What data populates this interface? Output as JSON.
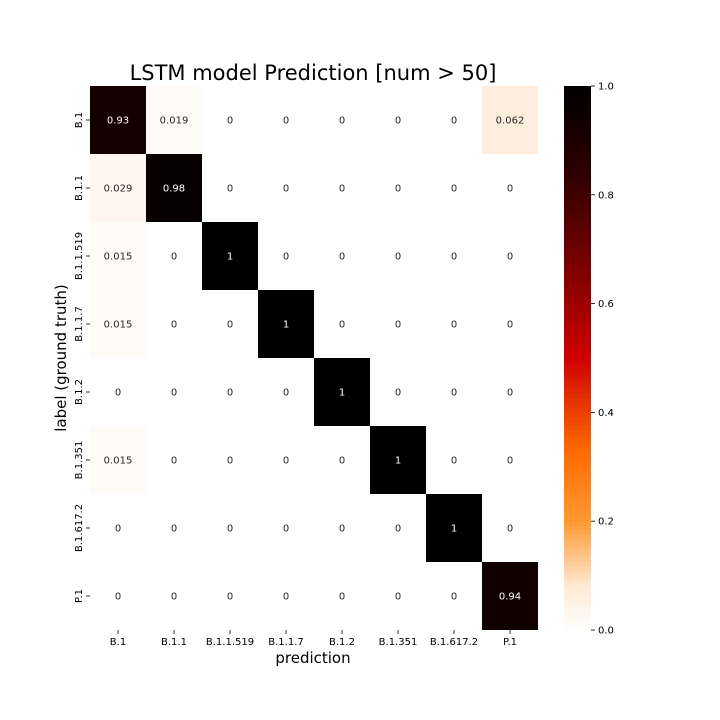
{
  "chart_data": {
    "type": "heatmap",
    "title": "LSTM model Prediction [num > 50]",
    "xlabel": "prediction",
    "ylabel": "label (ground truth)",
    "x_categories": [
      "B.1",
      "B.1.1",
      "B.1.1.519",
      "B.1.1.7",
      "B.1.2",
      "B.1.351",
      "B.1.617.2",
      "P.1"
    ],
    "y_categories": [
      "B.1",
      "B.1.1",
      "B.1.1.519",
      "B.1.1.7",
      "B.1.2",
      "B.1.351",
      "B.1.617.2",
      "P.1"
    ],
    "values": [
      [
        0.93,
        0.019,
        0,
        0,
        0,
        0,
        0,
        0.062
      ],
      [
        0.029,
        0.98,
        0,
        0,
        0,
        0,
        0,
        0
      ],
      [
        0.015,
        0,
        1,
        0,
        0,
        0,
        0,
        0
      ],
      [
        0.015,
        0,
        0,
        1,
        0,
        0,
        0,
        0
      ],
      [
        0,
        0,
        0,
        0,
        1,
        0,
        0,
        0
      ],
      [
        0.015,
        0,
        0,
        0,
        0,
        1,
        0,
        0
      ],
      [
        0,
        0,
        0,
        0,
        0,
        0,
        1,
        0
      ],
      [
        0,
        0,
        0,
        0,
        0,
        0,
        0,
        0.94
      ]
    ],
    "value_labels": [
      [
        "0.93",
        "0.019",
        "0",
        "0",
        "0",
        "0",
        "0",
        "0.062"
      ],
      [
        "0.029",
        "0.98",
        "0",
        "0",
        "0",
        "0",
        "0",
        "0"
      ],
      [
        "0.015",
        "0",
        "1",
        "0",
        "0",
        "0",
        "0",
        "0"
      ],
      [
        "0.015",
        "0",
        "0",
        "1",
        "0",
        "0",
        "0",
        "0"
      ],
      [
        "0",
        "0",
        "0",
        "0",
        "1",
        "0",
        "0",
        "0"
      ],
      [
        "0.015",
        "0",
        "0",
        "0",
        "0",
        "1",
        "0",
        "0"
      ],
      [
        "0",
        "0",
        "0",
        "0",
        "0",
        "0",
        "1",
        "0"
      ],
      [
        "0",
        "0",
        "0",
        "0",
        "0",
        "0",
        "0",
        "0.94"
      ]
    ],
    "colorbar": {
      "colormap": "gist_heat_r",
      "range": [
        0.0,
        1.0
      ],
      "ticks": [
        0.0,
        0.2,
        0.4,
        0.6,
        0.8,
        1.0
      ],
      "tick_labels": [
        "0.0",
        "0.2",
        "0.4",
        "0.6",
        "0.8",
        "1.0"
      ]
    },
    "grid": false,
    "legend": "none"
  }
}
